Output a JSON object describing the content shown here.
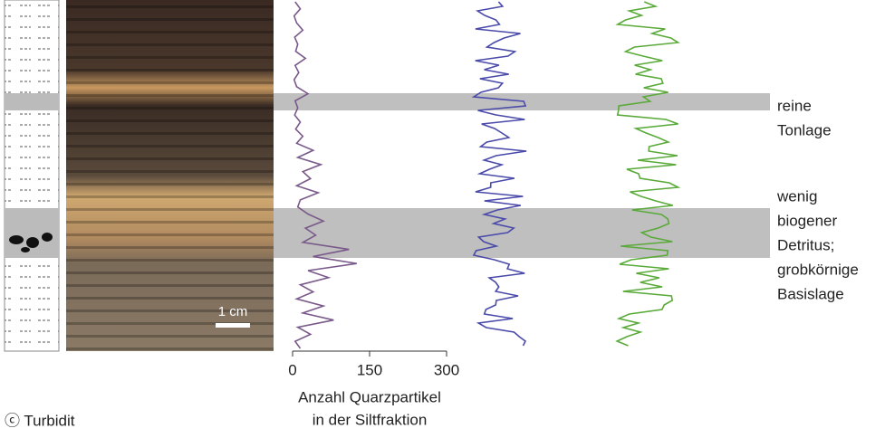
{
  "chart_data": {
    "type": "line",
    "xlabel_lines": [
      "Anzahl Quarzpartikel",
      "in der Siltfraktion"
    ],
    "values": [
      5,
      15,
      3,
      8,
      20,
      4,
      10,
      6,
      25,
      5,
      12,
      3,
      8,
      30,
      5,
      10,
      4,
      15,
      6,
      20,
      8,
      40,
      10,
      55,
      20,
      35,
      8,
      50,
      15,
      10,
      30,
      60,
      25,
      45,
      20,
      110,
      40,
      125,
      30,
      70,
      15,
      40,
      8,
      60,
      20,
      80,
      10,
      35,
      5,
      15
    ],
    "color": "#7a5a8a",
    "xlim": [
      0,
      300
    ],
    "xticks": [
      0,
      150,
      300
    ],
    "scale_label": "1 cm",
    "annotations": [
      {
        "lines": [
          "reine",
          "Tonlage"
        ]
      },
      {
        "lines": [
          "wenig",
          "biogener",
          "Detritus;",
          "grobkörnige",
          "Basislage"
        ]
      }
    ],
    "caption": "ⓒ Turbidit"
  }
}
